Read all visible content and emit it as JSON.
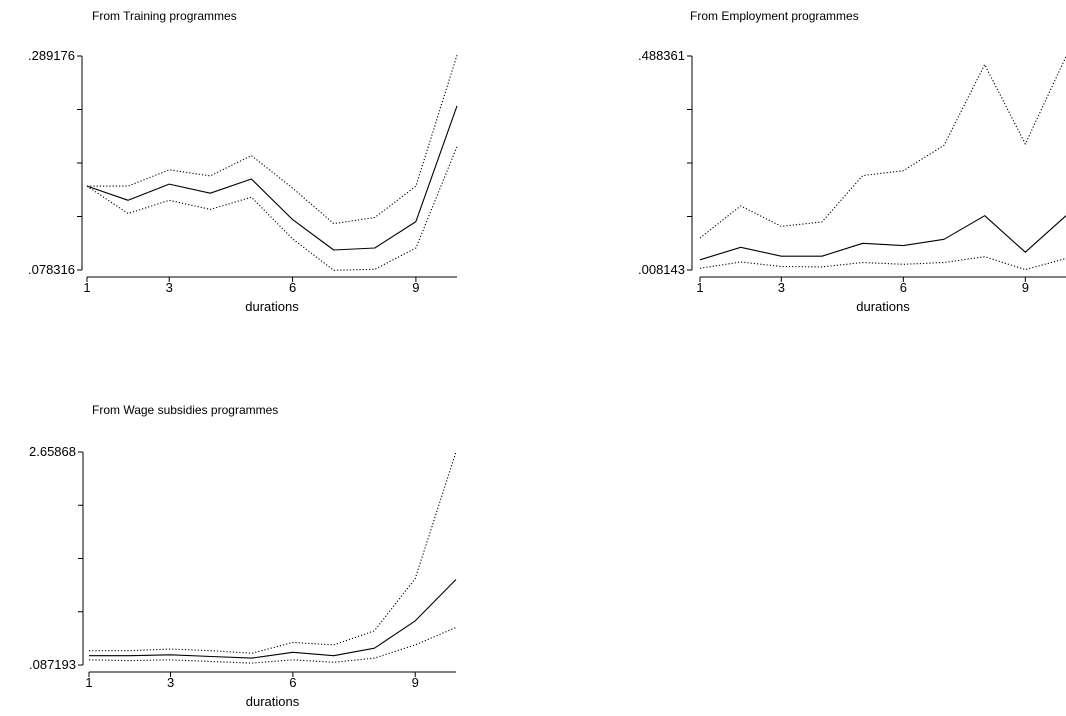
{
  "chart_data": [
    {
      "type": "line",
      "title": "From Training programmes",
      "xlabel": "durations",
      "x": [
        1,
        2,
        3,
        4,
        5,
        6,
        7,
        8,
        9,
        10
      ],
      "xticks": [
        "1",
        "3",
        "6",
        "9"
      ],
      "xtick_values": [
        1,
        3,
        6,
        9
      ],
      "ylim": [
        0.078316,
        0.289176
      ],
      "yticks": [
        ".078316",
        ".289176"
      ],
      "ytick_values": [
        0.078316,
        0.289176
      ],
      "series": [
        {
          "style": "dotted",
          "values": [
            0.161,
            0.161,
            0.177,
            0.171,
            0.191,
            0.159,
            0.124,
            0.13,
            0.161,
            0.29
          ]
        },
        {
          "style": "solid",
          "values": [
            0.161,
            0.147,
            0.163,
            0.154,
            0.168,
            0.128,
            0.098,
            0.1,
            0.126,
            0.24
          ]
        },
        {
          "style": "dotted",
          "values": [
            0.161,
            0.134,
            0.147,
            0.138,
            0.15,
            0.109,
            0.078,
            0.079,
            0.1,
            0.2
          ]
        }
      ]
    },
    {
      "type": "line",
      "title": "From Employment programmes",
      "xlabel": "durations",
      "x": [
        1,
        2,
        3,
        4,
        5,
        6,
        7,
        8,
        9,
        10
      ],
      "xticks": [
        "1",
        "3",
        "6",
        "9"
      ],
      "xtick_values": [
        1,
        3,
        6,
        9
      ],
      "ylim": [
        0.008143,
        0.488361
      ],
      "yticks": [
        ".008143",
        ".488361"
      ],
      "ytick_values": [
        0.008143,
        0.488361
      ],
      "series": [
        {
          "style": "dotted",
          "values": [
            0.08,
            0.152,
            0.106,
            0.116,
            0.22,
            0.231,
            0.288,
            0.469,
            0.291,
            0.487
          ]
        },
        {
          "style": "solid",
          "values": [
            0.031,
            0.059,
            0.039,
            0.039,
            0.068,
            0.063,
            0.077,
            0.13,
            0.048,
            0.13
          ]
        },
        {
          "style": "dotted",
          "values": [
            0.012,
            0.026,
            0.016,
            0.015,
            0.025,
            0.021,
            0.025,
            0.038,
            0.009,
            0.034
          ]
        }
      ]
    },
    {
      "type": "line",
      "title": "From Wage subsidies programmes",
      "xlabel": "durations",
      "x": [
        1,
        2,
        3,
        4,
        5,
        6,
        7,
        8,
        9,
        10
      ],
      "xticks": [
        "1",
        "3",
        "6",
        "9"
      ],
      "xtick_values": [
        1,
        3,
        6,
        9
      ],
      "ylim": [
        0.087193,
        2.65868
      ],
      "yticks": [
        ".087193",
        "2.65868"
      ],
      "ytick_values": [
        0.087193,
        2.65868
      ],
      "series": [
        {
          "style": "dotted",
          "values": [
            0.26,
            0.26,
            0.28,
            0.26,
            0.23,
            0.36,
            0.33,
            0.5,
            1.13,
            2.66
          ]
        },
        {
          "style": "solid",
          "values": [
            0.2,
            0.2,
            0.21,
            0.19,
            0.17,
            0.24,
            0.2,
            0.29,
            0.62,
            1.12
          ]
        },
        {
          "style": "dotted",
          "values": [
            0.15,
            0.14,
            0.15,
            0.13,
            0.11,
            0.15,
            0.12,
            0.17,
            0.33,
            0.54
          ]
        }
      ]
    }
  ]
}
